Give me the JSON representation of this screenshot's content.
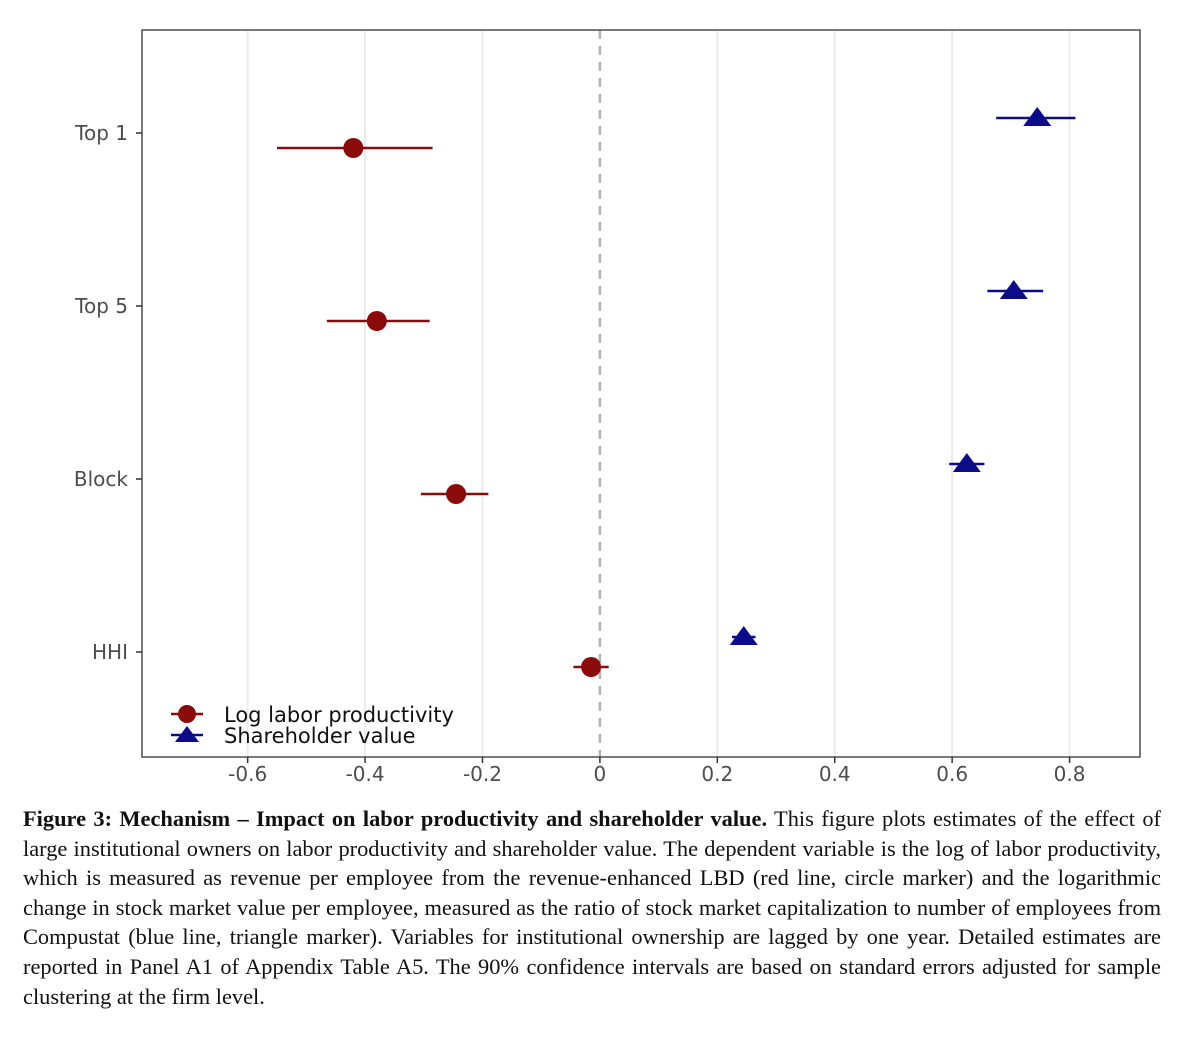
{
  "chart_data": {
    "type": "scatter",
    "subtype": "coefficient-plot",
    "categories": [
      "Top 1",
      "Top 5",
      "Block",
      "HHI"
    ],
    "xlim": [
      -0.78,
      0.92
    ],
    "xticks": [
      -0.6,
      -0.4,
      -0.2,
      0,
      0.2,
      0.4,
      0.6,
      0.8
    ],
    "xtick_labels": [
      "-0.6",
      "-0.4",
      "-0.2",
      "0",
      "0.2",
      "0.4",
      "0.6",
      "0.8"
    ],
    "reference_line": 0,
    "grid": true,
    "legend_position": "bottom-left",
    "series": [
      {
        "name": "Log labor productivity",
        "marker": "circle",
        "color": "#8b0a0a",
        "estimates": [
          -0.42,
          -0.38,
          -0.245,
          -0.015
        ],
        "ci_low": [
          -0.55,
          -0.465,
          -0.305,
          -0.045
        ],
        "ci_high": [
          -0.285,
          -0.29,
          -0.19,
          0.015
        ]
      },
      {
        "name": "Shareholder value",
        "marker": "triangle",
        "color": "#0c0c8a",
        "estimates": [
          0.745,
          0.705,
          0.625,
          0.245
        ],
        "ci_low": [
          0.675,
          0.66,
          0.595,
          0.225
        ],
        "ci_high": [
          0.81,
          0.755,
          0.655,
          0.265
        ]
      }
    ]
  },
  "caption": {
    "title": "Figure 3: Mechanism – Impact on labor productivity and shareholder value.",
    "body": "This figure plots estimates of the effect of large institutional owners on labor productivity and shareholder value. The dependent variable is the log of labor productivity, which is measured as revenue per employee from the revenue-enhanced LBD (red line, circle marker) and the logarithmic change in stock market value per employee, measured as the ratio of stock market capitalization to number of employees from Compustat (blue line, triangle marker). Variables for institutional ownership are lagged by one year. Detailed estimates are reported in Panel A1 of Appendix Table A5. The 90% confidence intervals are based on standard errors adjusted for sample clustering at the firm level."
  }
}
